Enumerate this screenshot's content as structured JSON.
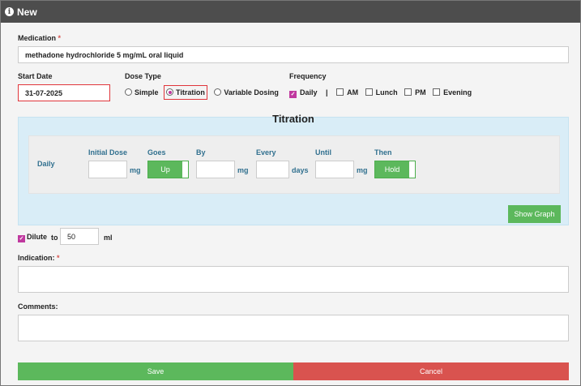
{
  "window": {
    "title": "New",
    "icon": "info-icon"
  },
  "medication": {
    "label": "Medication",
    "required": "*",
    "value": "methadone hydrochloride 5 mg/mL oral liquid"
  },
  "start_date": {
    "label": "Start Date",
    "value": "31-07-2025"
  },
  "dose_type": {
    "label": "Dose Type",
    "options": [
      "Simple",
      "Titration",
      "Variable Dosing"
    ],
    "selected": "Titration"
  },
  "frequency": {
    "label": "Frequency",
    "options": [
      {
        "label": "Daily",
        "checked": true
      },
      {
        "label": "AM",
        "checked": false
      },
      {
        "label": "Lunch",
        "checked": false
      },
      {
        "label": "PM",
        "checked": false
      },
      {
        "label": "Evening",
        "checked": false
      }
    ],
    "separator": "|"
  },
  "titration": {
    "title": "Titration",
    "row_label": "Daily",
    "columns": {
      "initial_dose": "Initial Dose",
      "goes": "Goes",
      "by": "By",
      "every": "Every",
      "until": "Until",
      "then": "Then"
    },
    "units": {
      "initial_dose": "mg",
      "by": "mg",
      "every": "days",
      "until": "mg"
    },
    "goes_value": "Up",
    "then_value": "Hold",
    "show_graph": "Show Graph"
  },
  "dilute": {
    "label": "Dilute",
    "checked": true,
    "to": "to",
    "value": "50",
    "unit": "ml"
  },
  "indication": {
    "label": "Indication:",
    "required": "*"
  },
  "comments": {
    "label": "Comments:"
  },
  "buttons": {
    "save": "Save",
    "cancel": "Cancel"
  },
  "colors": {
    "titlebar": "#4d4d4d",
    "save": "#5cb85c",
    "cancel": "#d9534f",
    "accent": "#c0399f",
    "panel": "#d9edf7"
  }
}
